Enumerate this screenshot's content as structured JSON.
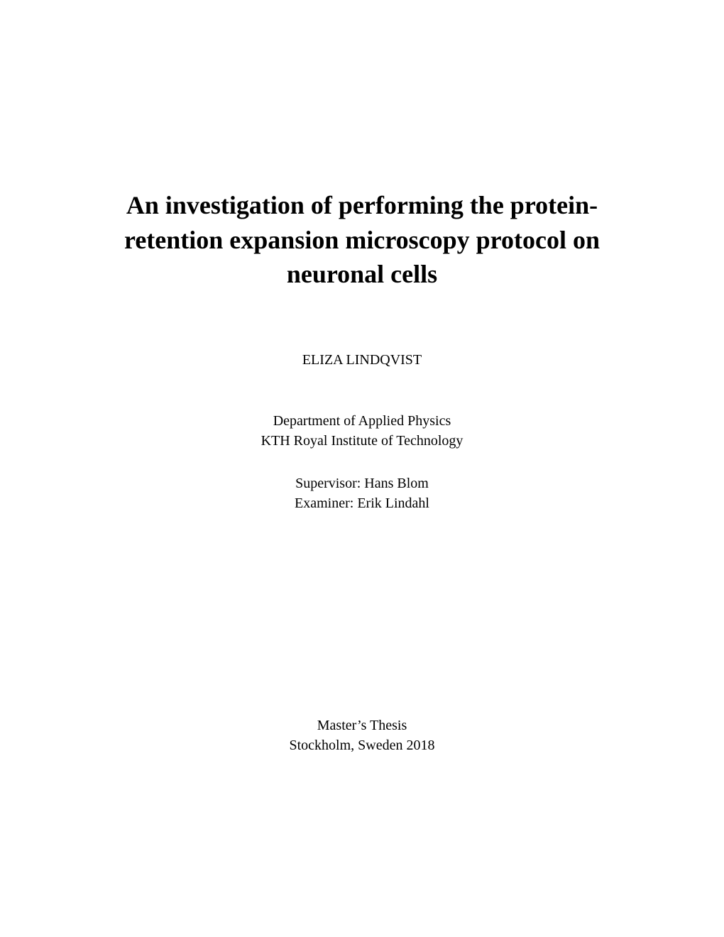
{
  "title": {
    "line1": "An investigation of performing the protein-",
    "line2": "retention expansion microscopy protocol on",
    "line3": "neuronal cells"
  },
  "author": "ELIZA LINDQVIST",
  "department": {
    "line1": "Department of Applied Physics",
    "line2": "KTH Royal Institute of Technology"
  },
  "roles": {
    "supervisor": "Supervisor: Hans Blom",
    "examiner": "Examiner: Erik Lindahl"
  },
  "thesis": {
    "type": "Master’s Thesis",
    "location": "Stockholm, Sweden 2018"
  },
  "colors": {
    "background": "#ffffff",
    "text": "#000000"
  },
  "typography": {
    "title_fontsize": 36,
    "title_fontweight": "bold",
    "body_fontsize": 20,
    "font_family": "Times New Roman"
  }
}
